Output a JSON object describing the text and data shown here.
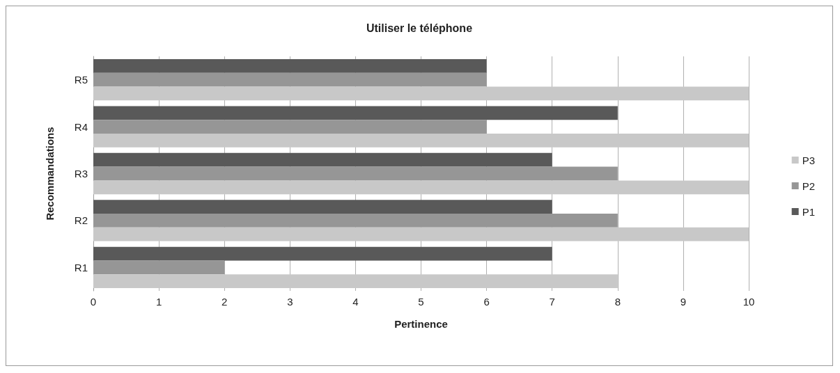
{
  "chart_data": {
    "type": "bar",
    "title": "Utiliser le téléphone",
    "orientation": "horizontal",
    "xlabel": "Pertinence",
    "ylabel": "Recommandations",
    "categories": [
      "R5",
      "R4",
      "R3",
      "R2",
      "R1"
    ],
    "series": [
      {
        "name": "P1",
        "color": "#595959",
        "values": [
          6,
          8,
          7,
          7,
          7
        ]
      },
      {
        "name": "P2",
        "color": "#969696",
        "values": [
          6,
          6,
          8,
          8,
          2
        ]
      },
      {
        "name": "P3",
        "color": "#c8c8c8",
        "values": [
          10,
          10,
          10,
          10,
          8
        ]
      }
    ],
    "xlim": [
      0,
      10
    ],
    "xticks": [
      0,
      1,
      2,
      3,
      4,
      5,
      6,
      7,
      8,
      9,
      10
    ],
    "grid": "x",
    "legend": "right"
  }
}
